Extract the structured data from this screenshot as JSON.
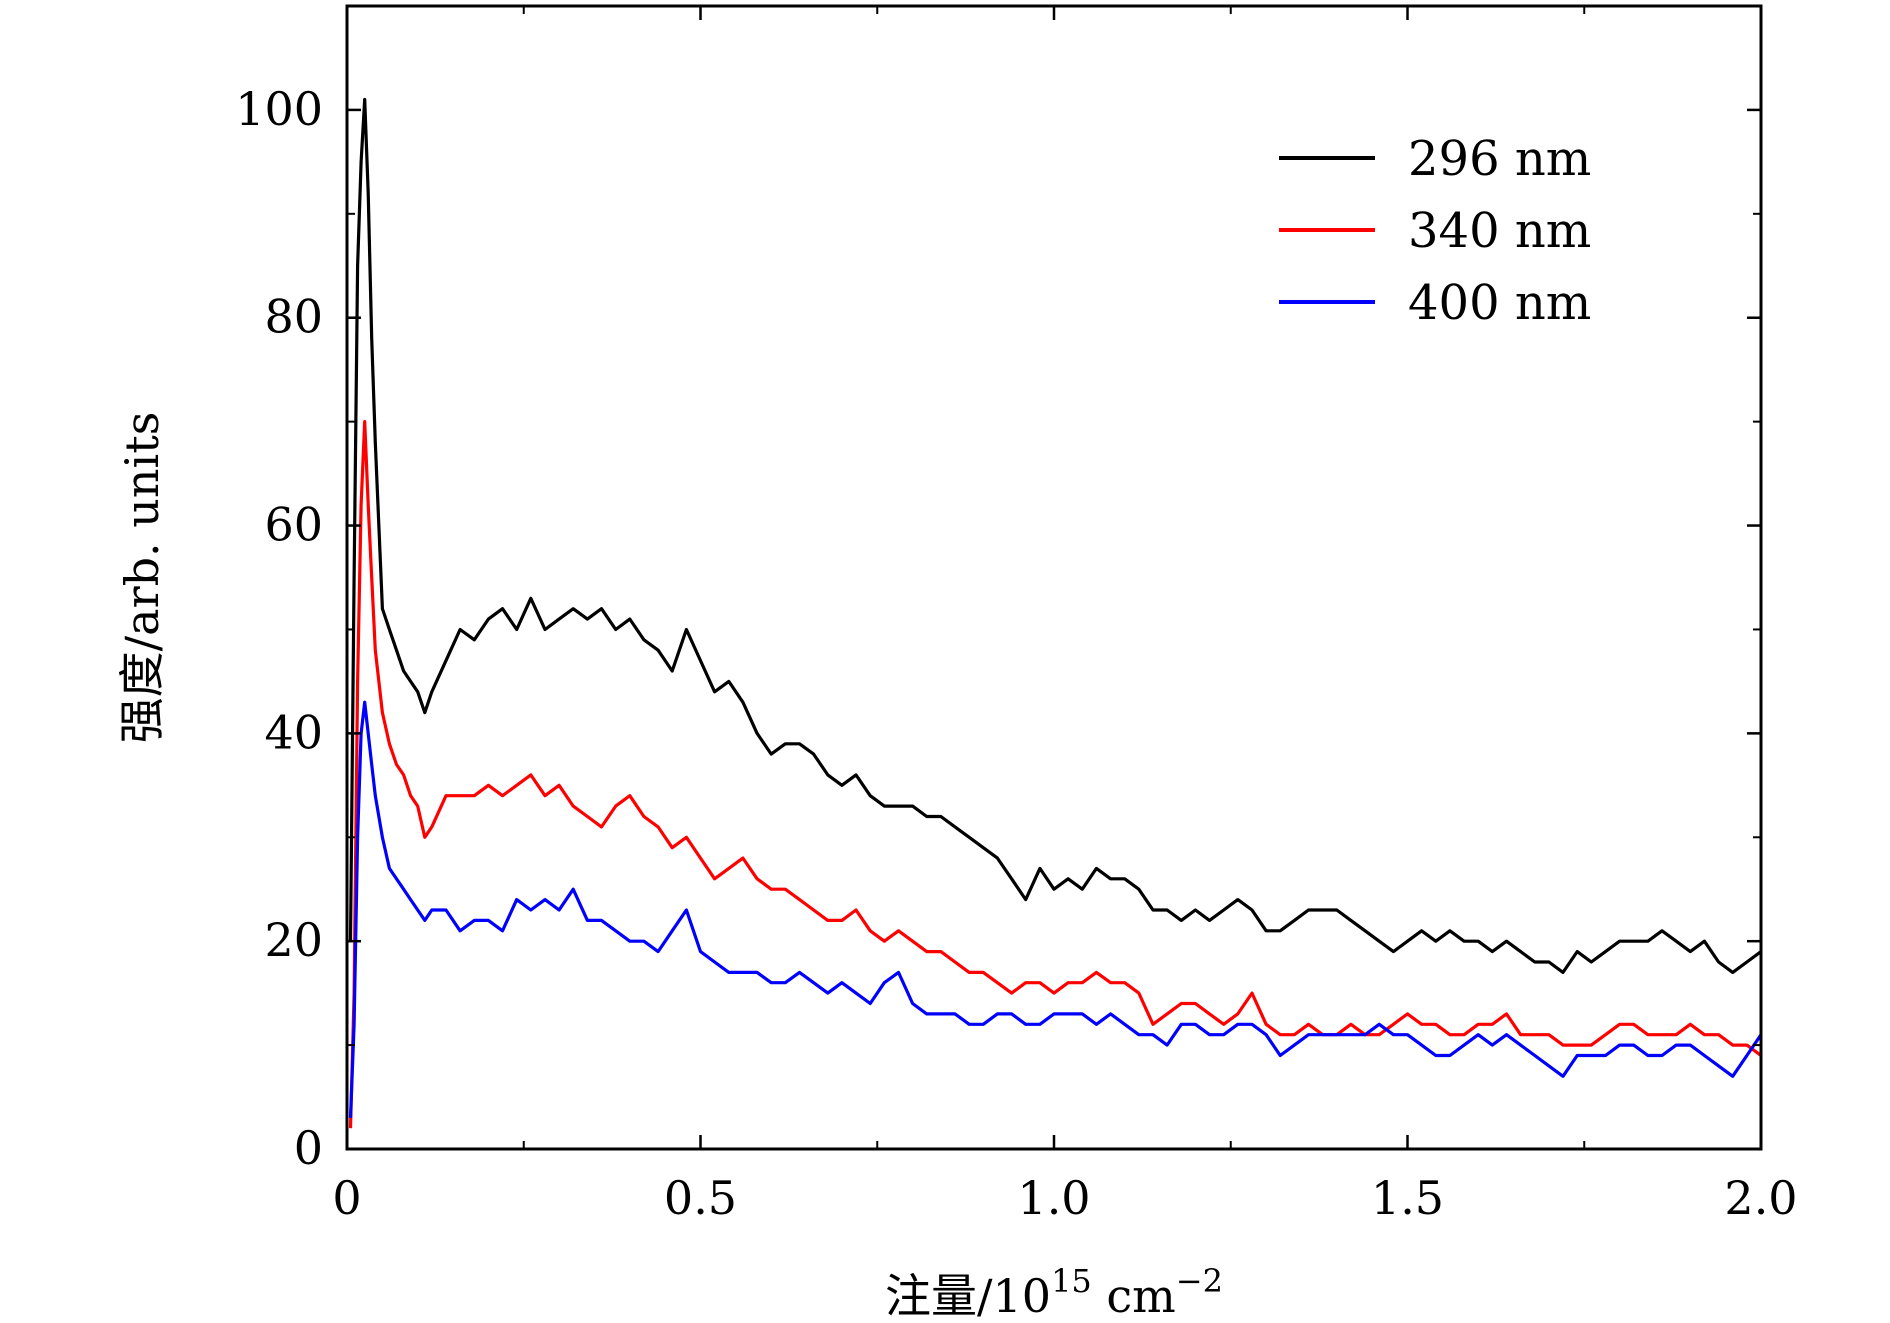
{
  "chart_data": {
    "type": "line",
    "title": "",
    "xlabel": "注量/10",
    "xlabel_sup1": "15",
    "xlabel_unit": " cm",
    "xlabel_sup2": "−2",
    "ylabel": "强度/arb. units",
    "xlim": [
      0,
      2.0
    ],
    "ylim": [
      0,
      110
    ],
    "xticks": [
      0,
      0.5,
      1.0,
      1.5,
      2.0
    ],
    "xtick_labels": [
      "0",
      "0.5",
      "1.0",
      "1.5",
      "2.0"
    ],
    "yticks": [
      0,
      20,
      40,
      60,
      80,
      100
    ],
    "ytick_labels": [
      "0",
      "20",
      "40",
      "60",
      "80",
      "100"
    ],
    "legend_position": "top-right",
    "grid": false,
    "series": [
      {
        "name": "296 nm",
        "color": "#000000",
        "x": [
          0.005,
          0.01,
          0.015,
          0.02,
          0.025,
          0.03,
          0.035,
          0.04,
          0.05,
          0.06,
          0.07,
          0.08,
          0.09,
          0.1,
          0.11,
          0.12,
          0.14,
          0.16,
          0.18,
          0.2,
          0.22,
          0.24,
          0.26,
          0.28,
          0.3,
          0.32,
          0.34,
          0.36,
          0.38,
          0.4,
          0.42,
          0.44,
          0.46,
          0.48,
          0.5,
          0.52,
          0.54,
          0.56,
          0.58,
          0.6,
          0.62,
          0.64,
          0.66,
          0.68,
          0.7,
          0.72,
          0.74,
          0.76,
          0.78,
          0.8,
          0.82,
          0.84,
          0.86,
          0.88,
          0.9,
          0.92,
          0.94,
          0.96,
          0.98,
          1.0,
          1.02,
          1.04,
          1.06,
          1.08,
          1.1,
          1.12,
          1.14,
          1.16,
          1.18,
          1.2,
          1.22,
          1.24,
          1.26,
          1.28,
          1.3,
          1.32,
          1.34,
          1.36,
          1.38,
          1.4,
          1.42,
          1.44,
          1.46,
          1.48,
          1.5,
          1.52,
          1.54,
          1.56,
          1.58,
          1.6,
          1.62,
          1.64,
          1.66,
          1.68,
          1.7,
          1.72,
          1.74,
          1.76,
          1.78,
          1.8,
          1.82,
          1.84,
          1.86,
          1.88,
          1.9,
          1.92,
          1.94,
          1.96,
          1.98,
          2.0
        ],
        "values": [
          20,
          55,
          85,
          95,
          101,
          92,
          78,
          68,
          52,
          50,
          48,
          46,
          45,
          44,
          42,
          44,
          47,
          50,
          49,
          51,
          52,
          50,
          53,
          50,
          51,
          52,
          51,
          52,
          50,
          51,
          49,
          48,
          46,
          50,
          47,
          44,
          45,
          43,
          40,
          38,
          39,
          39,
          38,
          36,
          35,
          36,
          34,
          33,
          33,
          33,
          32,
          32,
          31,
          30,
          29,
          28,
          26,
          24,
          27,
          25,
          26,
          25,
          27,
          26,
          26,
          25,
          23,
          23,
          22,
          23,
          22,
          23,
          24,
          23,
          21,
          21,
          22,
          23,
          23,
          23,
          22,
          21,
          20,
          19,
          20,
          21,
          20,
          21,
          20,
          20,
          19,
          20,
          19,
          18,
          18,
          17,
          19,
          18,
          19,
          20,
          20,
          20,
          21,
          20,
          19,
          20,
          18,
          17,
          18,
          19
        ]
      },
      {
        "name": "340 nm",
        "color": "#ff0000",
        "x": [
          0.005,
          0.01,
          0.015,
          0.02,
          0.025,
          0.03,
          0.035,
          0.04,
          0.05,
          0.06,
          0.07,
          0.08,
          0.09,
          0.1,
          0.11,
          0.12,
          0.14,
          0.16,
          0.18,
          0.2,
          0.22,
          0.24,
          0.26,
          0.28,
          0.3,
          0.32,
          0.34,
          0.36,
          0.38,
          0.4,
          0.42,
          0.44,
          0.46,
          0.48,
          0.5,
          0.52,
          0.54,
          0.56,
          0.58,
          0.6,
          0.62,
          0.64,
          0.66,
          0.68,
          0.7,
          0.72,
          0.74,
          0.76,
          0.78,
          0.8,
          0.82,
          0.84,
          0.86,
          0.88,
          0.9,
          0.92,
          0.94,
          0.96,
          0.98,
          1.0,
          1.02,
          1.04,
          1.06,
          1.08,
          1.1,
          1.12,
          1.14,
          1.16,
          1.18,
          1.2,
          1.22,
          1.24,
          1.26,
          1.28,
          1.3,
          1.32,
          1.34,
          1.36,
          1.38,
          1.4,
          1.42,
          1.44,
          1.46,
          1.48,
          1.5,
          1.52,
          1.54,
          1.56,
          1.58,
          1.6,
          1.62,
          1.64,
          1.66,
          1.68,
          1.7,
          1.72,
          1.74,
          1.76,
          1.78,
          1.8,
          1.82,
          1.84,
          1.86,
          1.88,
          1.9,
          1.92,
          1.94,
          1.96,
          1.98,
          2.0
        ],
        "values": [
          2,
          15,
          45,
          62,
          70,
          62,
          55,
          48,
          42,
          39,
          37,
          36,
          34,
          33,
          30,
          31,
          34,
          34,
          34,
          35,
          34,
          35,
          36,
          34,
          35,
          33,
          32,
          31,
          33,
          34,
          32,
          31,
          29,
          30,
          28,
          26,
          27,
          28,
          26,
          25,
          25,
          24,
          23,
          22,
          22,
          23,
          21,
          20,
          21,
          20,
          19,
          19,
          18,
          17,
          17,
          16,
          15,
          16,
          16,
          15,
          16,
          16,
          17,
          16,
          16,
          15,
          12,
          13,
          14,
          14,
          13,
          12,
          13,
          15,
          12,
          11,
          11,
          12,
          11,
          11,
          12,
          11,
          11,
          12,
          13,
          12,
          12,
          11,
          11,
          12,
          12,
          13,
          11,
          11,
          11,
          10,
          10,
          10,
          11,
          12,
          12,
          11,
          11,
          11,
          12,
          11,
          11,
          10,
          10,
          9
        ]
      },
      {
        "name": "400 nm",
        "color": "#0000ff",
        "x": [
          0.005,
          0.01,
          0.015,
          0.02,
          0.025,
          0.03,
          0.035,
          0.04,
          0.05,
          0.06,
          0.07,
          0.08,
          0.09,
          0.1,
          0.11,
          0.12,
          0.14,
          0.16,
          0.18,
          0.2,
          0.22,
          0.24,
          0.26,
          0.28,
          0.3,
          0.32,
          0.34,
          0.36,
          0.38,
          0.4,
          0.42,
          0.44,
          0.46,
          0.48,
          0.5,
          0.52,
          0.54,
          0.56,
          0.58,
          0.6,
          0.62,
          0.64,
          0.66,
          0.68,
          0.7,
          0.72,
          0.74,
          0.76,
          0.78,
          0.8,
          0.82,
          0.84,
          0.86,
          0.88,
          0.9,
          0.92,
          0.94,
          0.96,
          0.98,
          1.0,
          1.02,
          1.04,
          1.06,
          1.08,
          1.1,
          1.12,
          1.14,
          1.16,
          1.18,
          1.2,
          1.22,
          1.24,
          1.26,
          1.28,
          1.3,
          1.32,
          1.34,
          1.36,
          1.38,
          1.4,
          1.42,
          1.44,
          1.46,
          1.48,
          1.5,
          1.52,
          1.54,
          1.56,
          1.58,
          1.6,
          1.62,
          1.64,
          1.66,
          1.68,
          1.7,
          1.72,
          1.74,
          1.76,
          1.78,
          1.8,
          1.82,
          1.84,
          1.86,
          1.88,
          1.9,
          1.92,
          1.94,
          1.96,
          1.98,
          2.0
        ],
        "values": [
          3,
          12,
          30,
          40,
          43,
          40,
          37,
          34,
          30,
          27,
          26,
          25,
          24,
          23,
          22,
          23,
          23,
          21,
          22,
          22,
          21,
          24,
          23,
          24,
          23,
          25,
          22,
          22,
          21,
          20,
          20,
          19,
          21,
          23,
          19,
          18,
          17,
          17,
          17,
          16,
          16,
          17,
          16,
          15,
          16,
          15,
          14,
          16,
          17,
          14,
          13,
          13,
          13,
          12,
          12,
          13,
          13,
          12,
          12,
          13,
          13,
          13,
          12,
          13,
          12,
          11,
          11,
          10,
          12,
          12,
          11,
          11,
          12,
          12,
          11,
          9,
          10,
          11,
          11,
          11,
          11,
          11,
          12,
          11,
          11,
          10,
          9,
          9,
          10,
          11,
          10,
          11,
          10,
          9,
          8,
          7,
          9,
          9,
          9,
          10,
          10,
          9,
          9,
          10,
          10,
          9,
          8,
          7,
          9,
          11
        ]
      }
    ]
  }
}
